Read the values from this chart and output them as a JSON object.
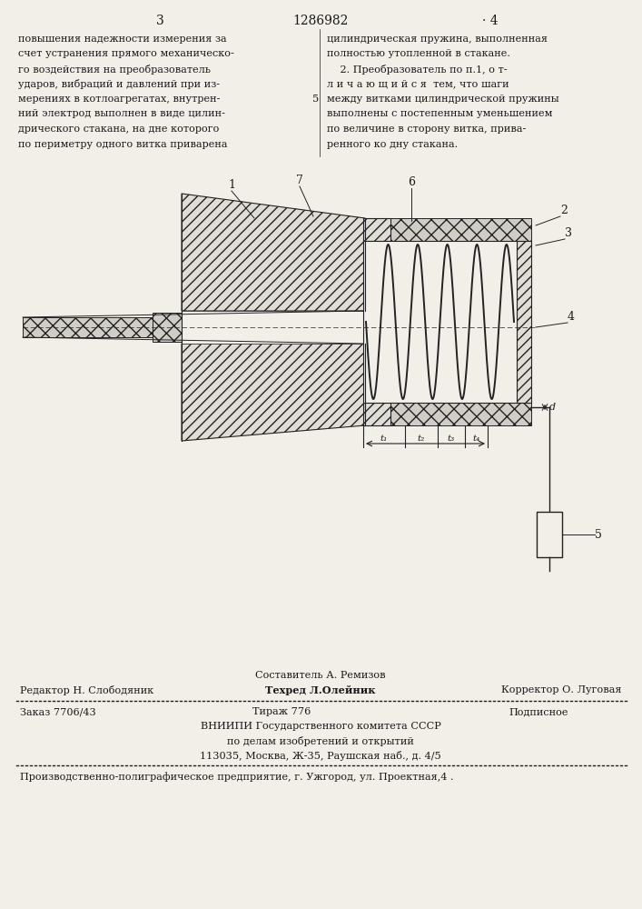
{
  "page_color": "#f2efe9",
  "text_color": "#1a1a1a",
  "title_number": "1286982",
  "page_left": "3",
  "page_right": "4",
  "left_text_lines": [
    "повышения надежности измерения за",
    "счет устранения прямого механическо-",
    "го воздействия на преобразователь",
    "ударов, вибраций и давлений при из-",
    "мерениях в котлоагрегатах, внутрен-",
    "ний электрод выполнен в виде цилин-",
    "дрического стакана, на дне которого",
    "по периметру одного витка приварена"
  ],
  "right_text_lines": [
    "цилиндрическая пружина, выполненная",
    "полностью утопленной в стакане.",
    "    2. Преобразователь по п.1, о т-",
    "л и ч а ю щ и й с я  тем, что шаги",
    "между витками цилиндрической пружины",
    "выполнены с постепенным уменьшением",
    "по величине в сторону витка, прива-",
    "ренного ко дну стакана."
  ],
  "margin_number": "5",
  "sestavitel": "Составитель А. Ремизов",
  "editor": "Редактор Н. Слободяник",
  "tekhred": "Техред Л.Олейник",
  "korrektor": "Корректор О. Луговая",
  "zakaz": "Заказ 7706/43",
  "tirazh": "Тираж 776",
  "podpisnoe": "Подписное",
  "vniиpi1": "ВНИИПИ Государственного комитета СССР",
  "vniиpi2": "по делам изобретений и открытий",
  "vniиpi3": "113035, Москва, Ж-35, Раушская наб., д. 4/5",
  "footer_last": "Производственно-полиграфическое предприятие, г. Ужгород, ул. Проектная,4 .",
  "hatch_color": "#222222",
  "hatch_fc": "#e0ddd6",
  "hatch_xx_fc": "#d0cdc6",
  "label1": "1",
  "label2": "2",
  "label3": "3",
  "label4": "4",
  "label5": "5",
  "label6": "6",
  "label7": "7",
  "label_d": "d",
  "label_t1": "t₁",
  "label_t2": "t₂",
  "label_t3": "t₃",
  "label_t4": "t₄"
}
